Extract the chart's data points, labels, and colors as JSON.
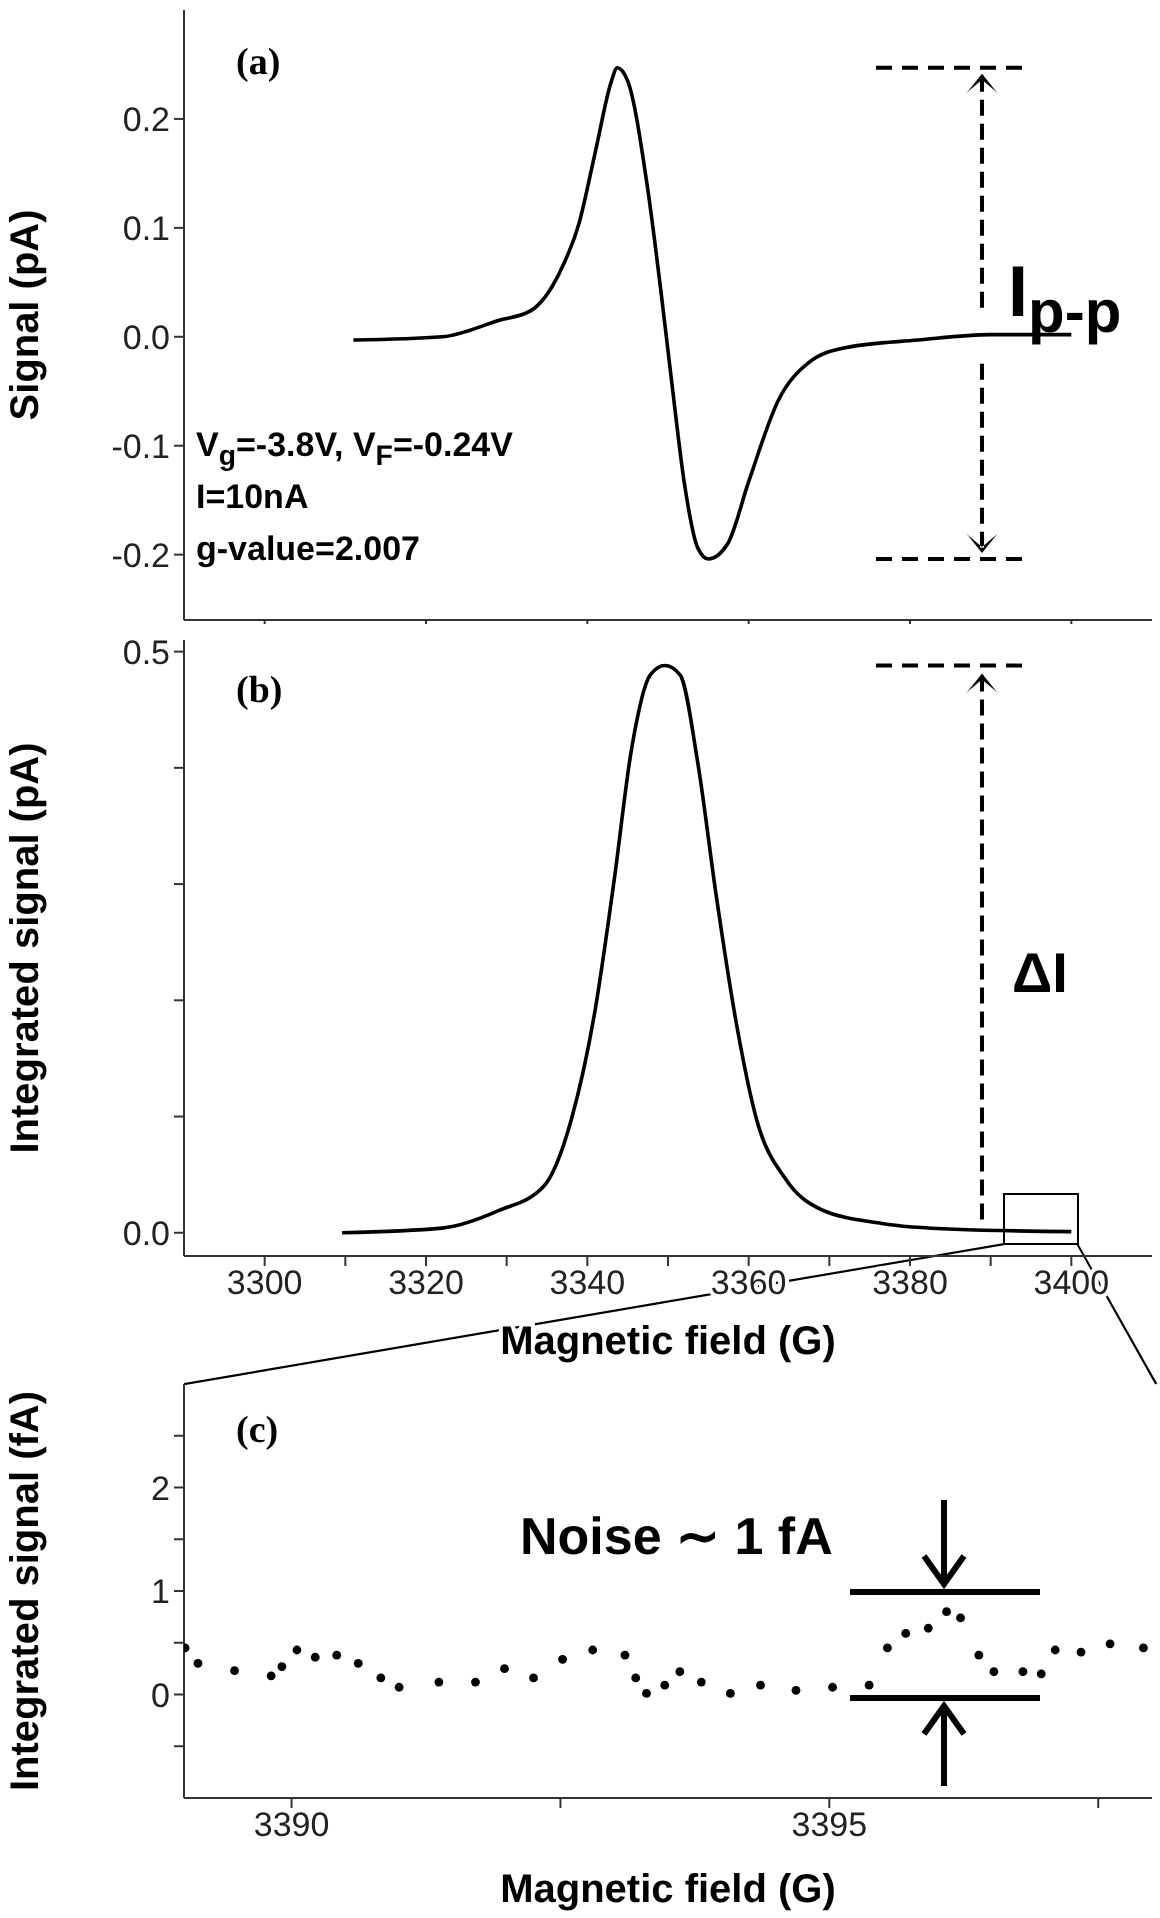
{
  "chart_data": [
    {
      "type": "line",
      "ylabel": "Signal (pA)",
      "xlim": [
        3290,
        3410
      ],
      "ylim": [
        -0.26,
        0.3
      ],
      "tick_labels": "y",
      "marker": "none",
      "line_style": "solid",
      "xticks": [
        {
          "value": 3300,
          "label": null
        },
        {
          "value": 3320,
          "label": null
        },
        {
          "value": 3340,
          "label": null
        },
        {
          "value": 3360,
          "label": null
        },
        {
          "value": 3380,
          "label": null
        },
        {
          "value": 3400,
          "label": null
        }
      ],
      "yticks": [
        -0.2,
        -0.1,
        {
          "value": 0,
          "label": "0.0"
        },
        0.1,
        0.2
      ],
      "annotations": [
        "(a)",
        "V$_{g}$=-3.8V, V$_{F}$=-0.24V",
        "I=10nA",
        "g-value=2.007",
        "I$_{p-p}$"
      ],
      "series": [
        {
          "color": "#000000",
          "x": [
            3311,
            3322,
            3329,
            3333,
            3336.5,
            3339,
            3341,
            3343,
            3343.7,
            3345,
            3347.4,
            3349.2,
            3350.5,
            3352,
            3353.7,
            3355,
            3357.4,
            3360,
            3363.7,
            3367.4,
            3372,
            3381,
            3390,
            3400
          ],
          "values": [
            -0.003,
            0,
            0.015,
            0.024,
            0.058,
            0.105,
            0.17,
            0.235,
            0.247,
            0.235,
            0.14,
            0.037,
            -0.044,
            -0.133,
            -0.194,
            -0.204,
            -0.19,
            -0.133,
            -0.058,
            -0.024,
            -0.01,
            -0.003,
            0.002,
            0.002
          ]
        }
      ]
    },
    {
      "type": "line",
      "xlabel": "Magnetic field (G)",
      "ylabel": "Integrated signal (pA)",
      "xlim": [
        3290,
        3410
      ],
      "ylim": [
        -0.02,
        0.51
      ],
      "marker": "none",
      "line_style": "solid",
      "xticks": [
        3300,
        {
          "value": 3310,
          "label": null
        },
        3320,
        {
          "value": 3330,
          "label": null
        },
        3340,
        {
          "value": 3350,
          "label": null
        },
        3360,
        {
          "value": 3370,
          "label": null
        },
        3380,
        {
          "value": 3390,
          "label": null
        },
        3400
      ],
      "yticks": [
        {
          "value": 0,
          "label": "0.0"
        },
        {
          "value": 0.1,
          "label": null
        },
        {
          "value": 0.2,
          "label": null
        },
        {
          "value": 0.3,
          "label": null
        },
        {
          "value": 0.4,
          "label": null
        },
        0.5
      ],
      "annotations": [
        "(b)",
        "ΔI"
      ],
      "series": [
        {
          "color": "#000000",
          "x": [
            3309.6,
            3322,
            3329,
            3334.6,
            3338,
            3341,
            3343.3,
            3345.5,
            3347.8,
            3349.6,
            3351.5,
            3353.7,
            3356,
            3358.3,
            3361,
            3364.6,
            3369,
            3376.5,
            3385.5,
            3400
          ],
          "values": [
            0,
            0.004,
            0.019,
            0.04,
            0.097,
            0.193,
            0.302,
            0.417,
            0.48,
            0.488,
            0.48,
            0.404,
            0.289,
            0.187,
            0.097,
            0.046,
            0.02,
            0.008,
            0.003,
            0.001
          ]
        }
      ]
    },
    {
      "type": "scatter",
      "xlabel": "Magnetic field (G)",
      "ylabel": "Integrated signal (fA)",
      "xlim": [
        3389,
        3398
      ],
      "ylim": [
        -1,
        3
      ],
      "marker": "circle",
      "xticks": [
        3390,
        {
          "value": 3392.5,
          "label": null
        },
        3395,
        {
          "value": 3397.5,
          "label": null
        }
      ],
      "yticks": [
        {
          "value": -0.5,
          "label": null
        },
        0,
        {
          "value": 0.5,
          "label": null
        },
        1,
        {
          "value": 1.5,
          "label": null
        },
        2,
        {
          "value": 2.5,
          "label": null
        }
      ],
      "annotations": [
        "(c)",
        "Noise ∼ 1 fA"
      ],
      "series": [
        {
          "color": "#000000",
          "x": [
            3389.01,
            3389.13,
            3389.47,
            3389.81,
            3389.91,
            3390.05,
            3390.22,
            3390.42,
            3390.62,
            3390.83,
            3391.0,
            3391.37,
            3391.71,
            3391.98,
            3392.25,
            3392.52,
            3392.8,
            3393.1,
            3393.2,
            3393.3,
            3393.47,
            3393.61,
            3393.81,
            3394.08,
            3394.36,
            3394.69,
            3395.03,
            3395.37,
            3395.54,
            3395.71,
            3395.92,
            3396.09,
            3396.22,
            3396.39,
            3396.53,
            3396.8,
            3396.97,
            3397.1,
            3397.34,
            3397.61,
            3397.92
          ],
          "values": [
            0.45,
            0.3,
            0.23,
            0.18,
            0.27,
            0.43,
            0.36,
            0.38,
            0.3,
            0.16,
            0.07,
            0.12,
            0.12,
            0.25,
            0.16,
            0.34,
            0.43,
            0.38,
            0.16,
            0.01,
            0.09,
            0.22,
            0.12,
            0.01,
            0.09,
            0.04,
            0.07,
            0.09,
            0.45,
            0.59,
            0.64,
            0.8,
            0.74,
            0.38,
            0.22,
            0.22,
            0.2,
            0.43,
            0.41,
            0.49,
            0.45
          ]
        }
      ]
    }
  ]
}
